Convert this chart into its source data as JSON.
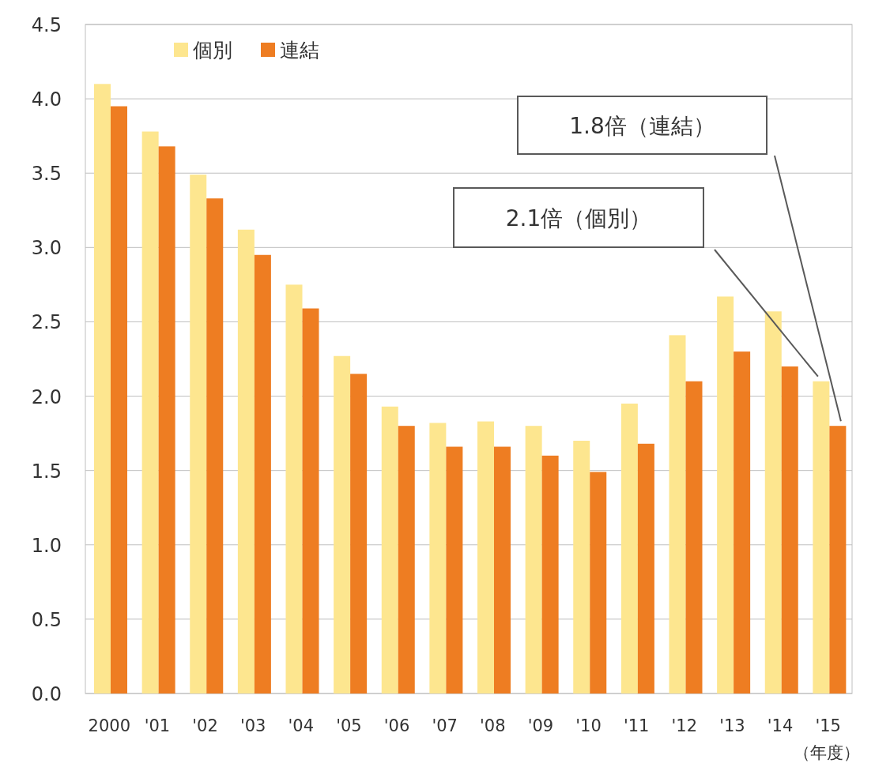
{
  "chart_data": {
    "type": "bar",
    "xlabel": "（年度）",
    "categories": [
      "2000",
      "'01",
      "'02",
      "'03",
      "'04",
      "'05",
      "'06",
      "'07",
      "'08",
      "'09",
      "'10",
      "'11",
      "'12",
      "'13",
      "'14",
      "'15"
    ],
    "series": [
      {
        "name": "個別",
        "color": "#fde68f",
        "values": [
          4.1,
          3.78,
          3.49,
          3.12,
          2.75,
          2.27,
          1.93,
          1.82,
          1.83,
          1.8,
          1.7,
          1.95,
          2.41,
          2.67,
          2.57,
          2.1
        ]
      },
      {
        "name": "連結",
        "color": "#ee7d22",
        "values": [
          3.95,
          3.68,
          3.33,
          2.95,
          2.59,
          2.15,
          1.8,
          1.66,
          1.66,
          1.6,
          1.49,
          1.68,
          2.1,
          2.3,
          2.2,
          1.8
        ]
      }
    ],
    "ylim": [
      0,
      4.5
    ],
    "yticks": [
      {
        "value": 0,
        "label": "0.0"
      },
      {
        "value": 0.5,
        "label": "0.5"
      },
      {
        "value": 1,
        "label": "1.0"
      },
      {
        "value": 1.5,
        "label": "1.5"
      },
      {
        "value": 2,
        "label": "2.0"
      },
      {
        "value": 2.5,
        "label": "2.5"
      },
      {
        "value": 3,
        "label": "3.0"
      },
      {
        "value": 3.5,
        "label": "3.5"
      },
      {
        "value": 4,
        "label": "4.0"
      },
      {
        "value": 4.5,
        "label": "4.5"
      }
    ],
    "grid": "y",
    "legend": "top left",
    "annotations": [
      "1.8倍（連結）",
      "2.1倍（個別）"
    ]
  }
}
